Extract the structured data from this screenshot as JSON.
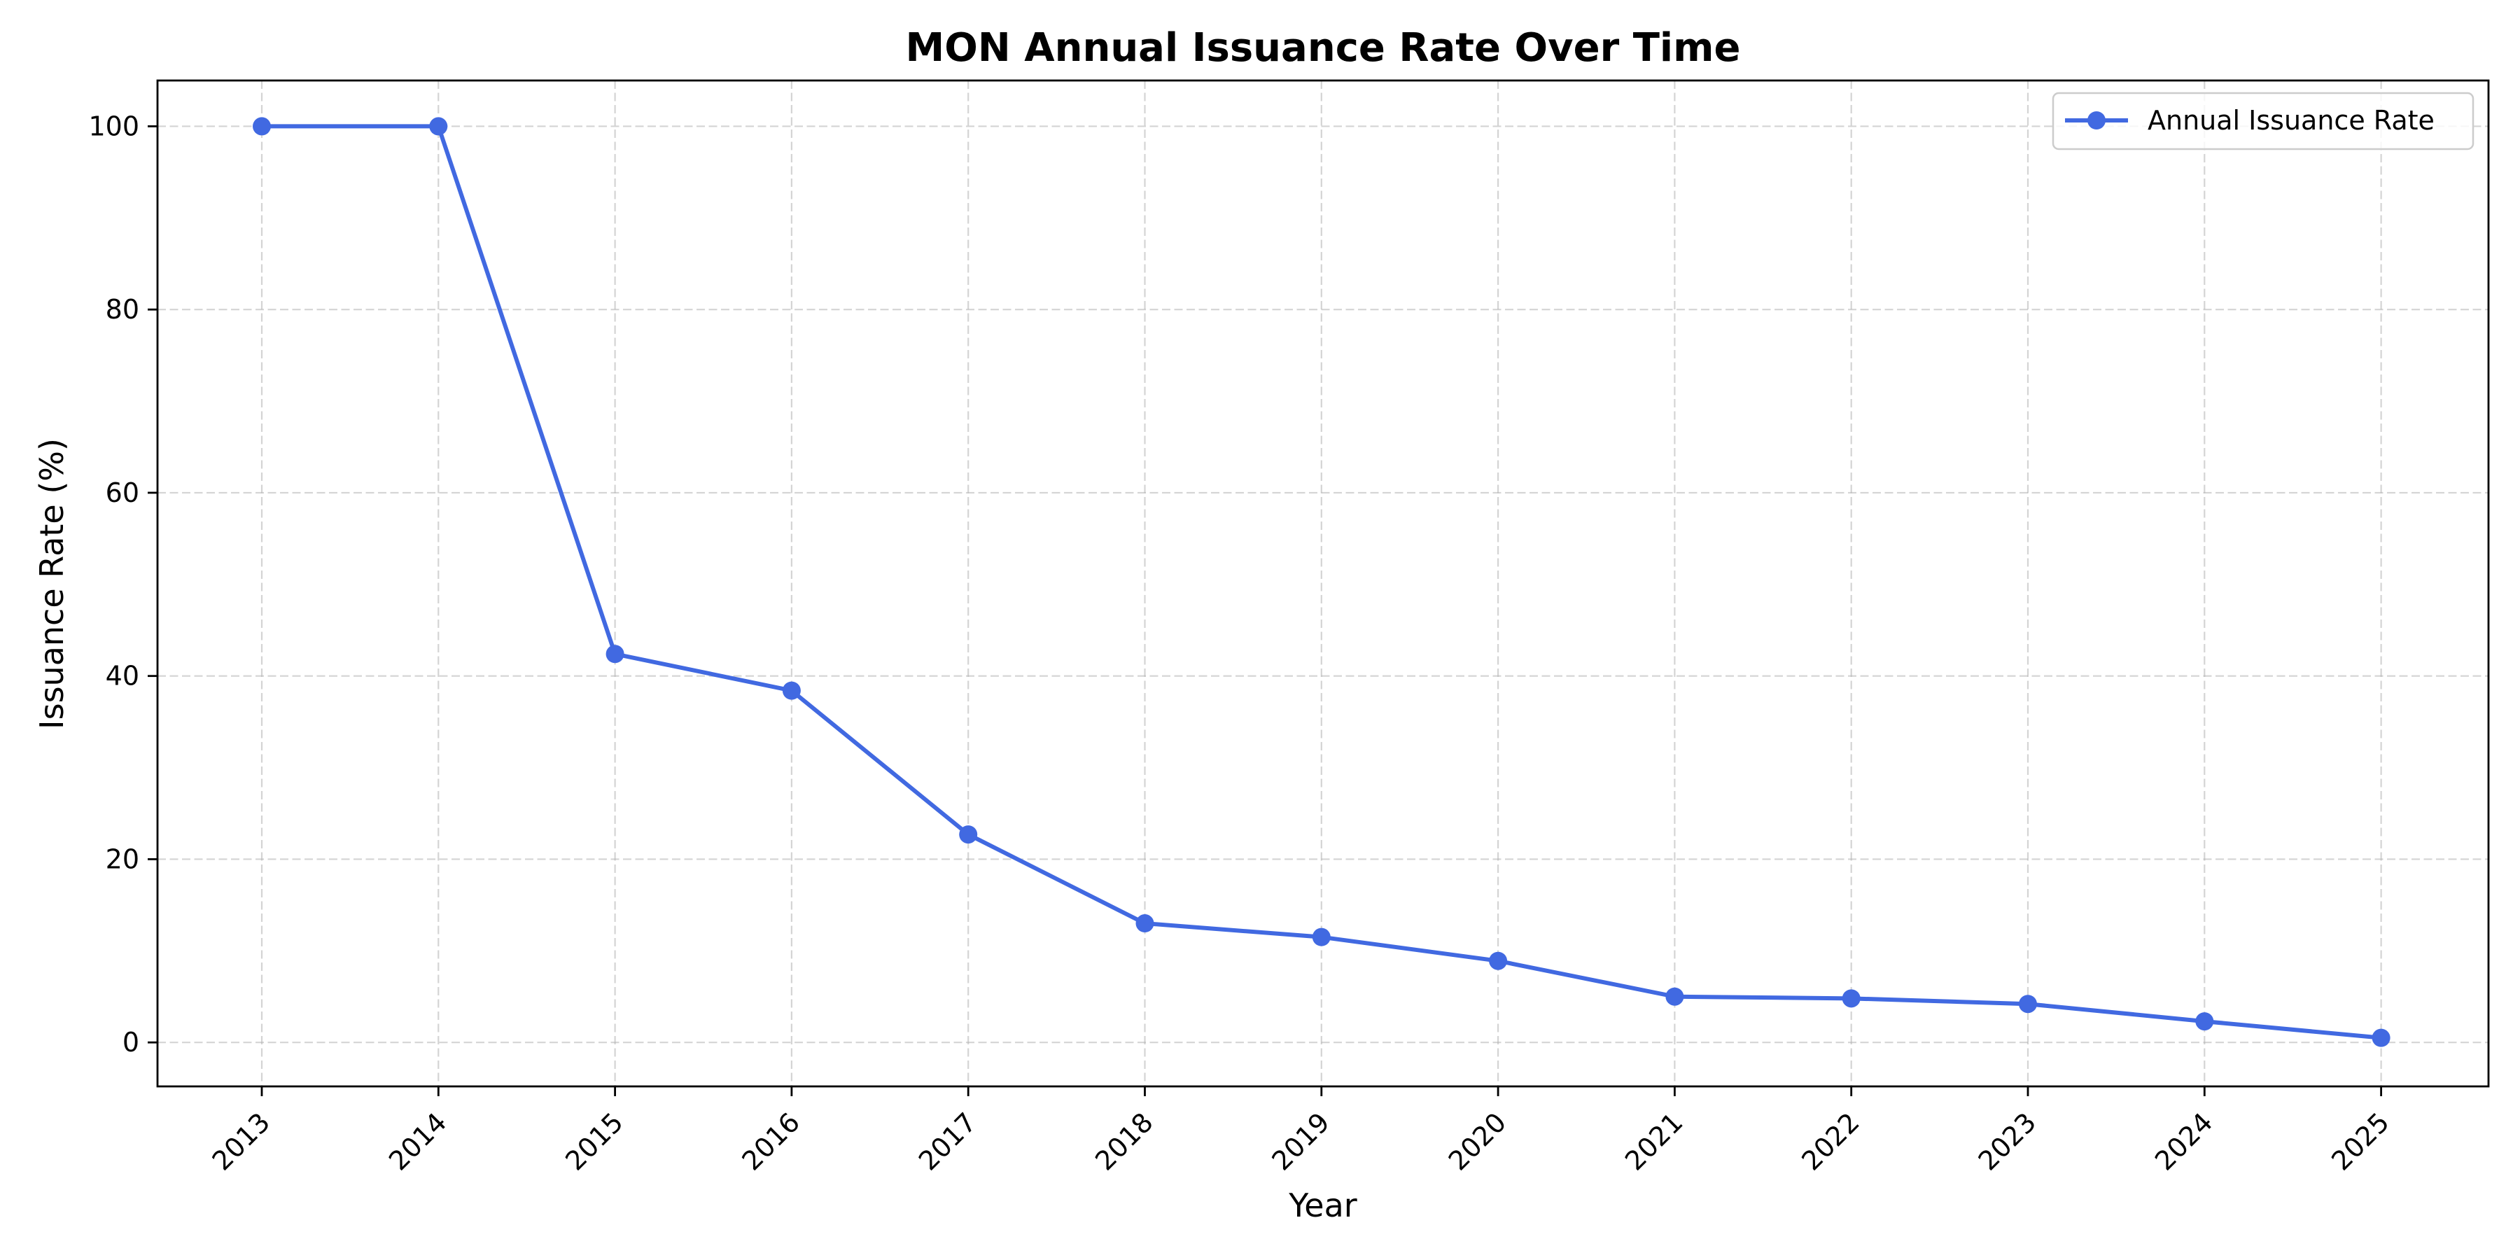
{
  "chart_data": {
    "type": "line",
    "title": "MON Annual Issuance Rate Over Time",
    "xlabel": "Year",
    "ylabel": "Issuance Rate (%)",
    "x": [
      "2013",
      "2014",
      "2015",
      "2016",
      "2017",
      "2018",
      "2019",
      "2020",
      "2021",
      "2022",
      "2023",
      "2024",
      "2025"
    ],
    "series": [
      {
        "name": "Annual Issuance Rate",
        "color": "#4169E1",
        "marker": "circle",
        "values": [
          100,
          100,
          42.4,
          38.4,
          22.7,
          13.0,
          11.5,
          8.9,
          5.0,
          4.8,
          4.2,
          2.3,
          0.5
        ]
      }
    ],
    "ylim": [
      -4.8,
      105
    ],
    "yticks": [
      0,
      20,
      40,
      60,
      80,
      100
    ],
    "grid": true,
    "legend": "upper right"
  }
}
